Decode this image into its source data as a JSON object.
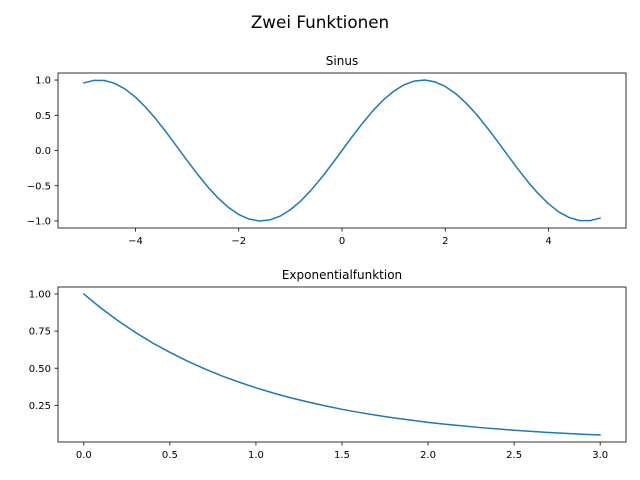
{
  "figure": {
    "title": "Zwei Funktionen"
  },
  "chart_data": [
    {
      "type": "line",
      "title": "Sinus",
      "xlabel": "",
      "ylabel": "",
      "xlim": [
        -5.5,
        5.5
      ],
      "ylim": [
        -1.1,
        1.1
      ],
      "xticks": [
        -4,
        -2,
        0,
        2,
        4
      ],
      "xtick_labels": [
        "−4",
        "−2",
        "0",
        "2",
        "4"
      ],
      "yticks": [
        1.0,
        0.5,
        0.0,
        -0.5,
        -1.0
      ],
      "ytick_labels": [
        "1.0",
        "0.5",
        "0.0",
        "−0.5",
        "−1.0"
      ],
      "grid": false,
      "color": "#1f77b4",
      "series": [
        {
          "x": [
            -5.0,
            -4.8,
            -4.6,
            -4.4,
            -4.2,
            -4.0,
            -3.8,
            -3.6,
            -3.4,
            -3.2,
            -3.0,
            -2.8,
            -2.6,
            -2.4,
            -2.2,
            -2.0,
            -1.8,
            -1.6,
            -1.4,
            -1.2,
            -1.0,
            -0.8,
            -0.6,
            -0.4,
            -0.2,
            0.0,
            0.2,
            0.4,
            0.6,
            0.8,
            1.0,
            1.2,
            1.4,
            1.6,
            1.8,
            2.0,
            2.2,
            2.4,
            2.6,
            2.8,
            3.0,
            3.2,
            3.4,
            3.6,
            3.8,
            4.0,
            4.2,
            4.4,
            4.6,
            4.8,
            5.0
          ],
          "y": [
            0.959,
            0.996,
            0.994,
            0.952,
            0.872,
            0.757,
            0.612,
            0.443,
            0.256,
            0.058,
            -0.141,
            -0.335,
            -0.516,
            -0.675,
            -0.808,
            -0.909,
            -0.974,
            -1.0,
            -0.985,
            -0.932,
            -0.841,
            -0.717,
            -0.565,
            -0.389,
            -0.199,
            0.0,
            0.199,
            0.389,
            0.565,
            0.717,
            0.841,
            0.932,
            0.985,
            1.0,
            0.974,
            0.909,
            0.808,
            0.675,
            0.516,
            0.335,
            0.141,
            -0.058,
            -0.256,
            -0.443,
            -0.612,
            -0.757,
            -0.872,
            -0.952,
            -0.994,
            -0.996,
            -0.959
          ]
        }
      ]
    },
    {
      "type": "line",
      "title": "Exponentialfunktion",
      "xlabel": "",
      "ylabel": "",
      "xlim": [
        -0.15,
        3.15
      ],
      "ylim": [
        0.0027,
        1.0473
      ],
      "xticks": [
        0.0,
        0.5,
        1.0,
        1.5,
        2.0,
        2.5,
        3.0
      ],
      "xtick_labels": [
        "0.0",
        "0.5",
        "1.0",
        "1.5",
        "2.0",
        "2.5",
        "3.0"
      ],
      "yticks": [
        1.0,
        0.75,
        0.5,
        0.25
      ],
      "ytick_labels": [
        "1.00",
        "0.75",
        "0.50",
        "0.25"
      ],
      "grid": false,
      "color": "#1f77b4",
      "series": [
        {
          "x": [
            0.0,
            0.1,
            0.2,
            0.3,
            0.4,
            0.5,
            0.6,
            0.7,
            0.8,
            0.9,
            1.0,
            1.1,
            1.2,
            1.3,
            1.4,
            1.5,
            1.6,
            1.7,
            1.8,
            1.9,
            2.0,
            2.1,
            2.2,
            2.3,
            2.4,
            2.5,
            2.6,
            2.7,
            2.8,
            2.9,
            3.0
          ],
          "y": [
            1.0,
            0.905,
            0.819,
            0.741,
            0.67,
            0.607,
            0.549,
            0.497,
            0.449,
            0.407,
            0.368,
            0.333,
            0.301,
            0.273,
            0.247,
            0.223,
            0.202,
            0.183,
            0.165,
            0.15,
            0.135,
            0.122,
            0.111,
            0.1,
            0.091,
            0.082,
            0.074,
            0.067,
            0.061,
            0.055,
            0.05
          ]
        }
      ]
    }
  ]
}
